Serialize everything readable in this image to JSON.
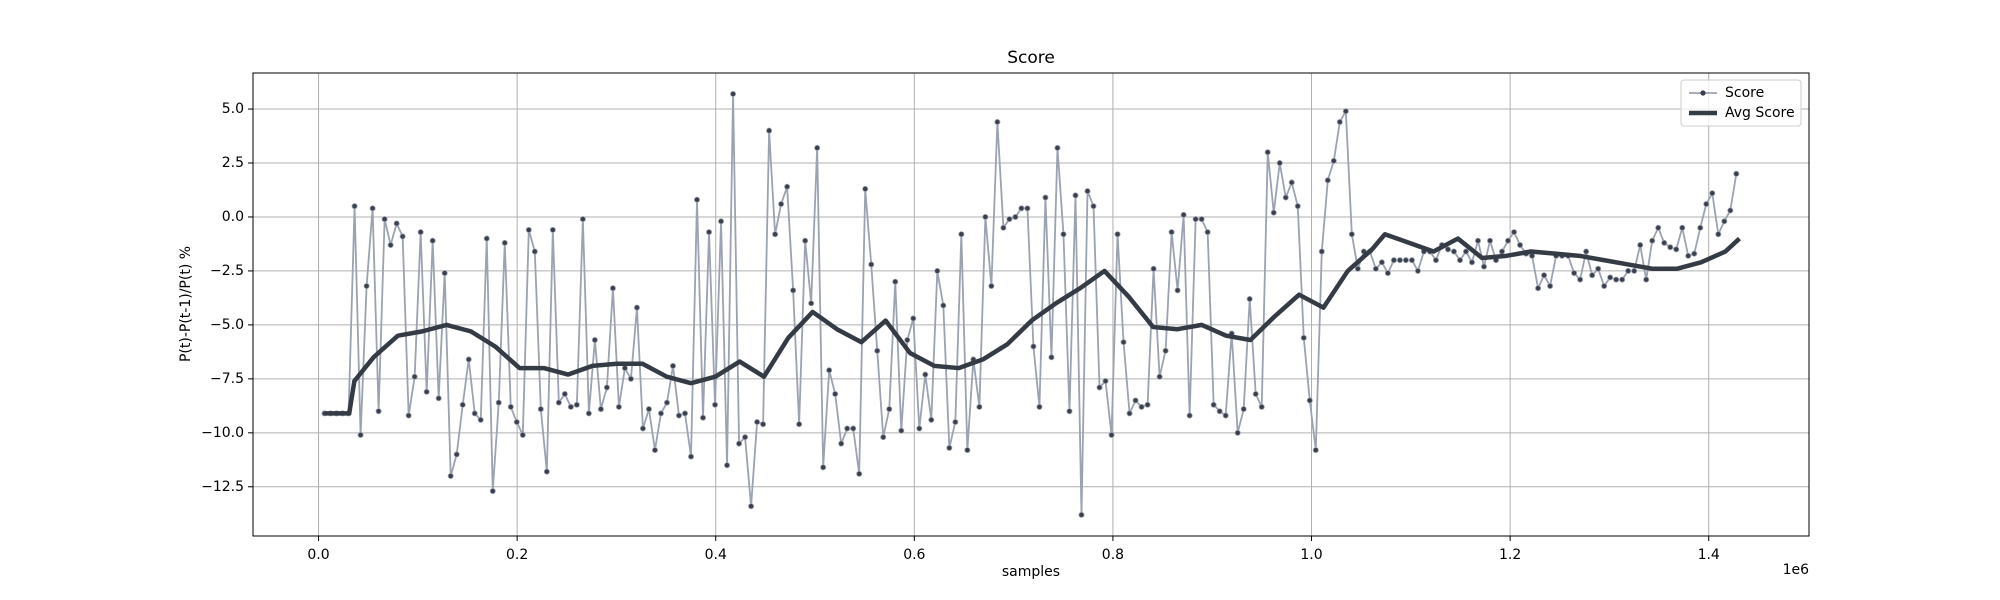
{
  "chart_data": {
    "type": "line",
    "title": "Score",
    "x_label": "samples",
    "y_label": "P(t)-P(t-1)/P(t) %",
    "x_offset_label": "1e6",
    "xlim": [
      -66000,
      1501000
    ],
    "ylim": [
      -14.78,
      6.67
    ],
    "xticks": [
      {
        "value": 0,
        "label": "0.0"
      },
      {
        "value": 200000,
        "label": "0.2"
      },
      {
        "value": 400000,
        "label": "0.4"
      },
      {
        "value": 600000,
        "label": "0.6"
      },
      {
        "value": 800000,
        "label": "0.8"
      },
      {
        "value": 1000000,
        "label": "1.0"
      },
      {
        "value": 1200000,
        "label": "1.2"
      },
      {
        "value": 1400000,
        "label": "1.4"
      }
    ],
    "yticks": [
      {
        "value": -12.5,
        "label": "−12.5"
      },
      {
        "value": -10,
        "label": "−10.0"
      },
      {
        "value": -7.5,
        "label": "−7.5"
      },
      {
        "value": -5,
        "label": "−5.0"
      },
      {
        "value": -2.5,
        "label": "−2.5"
      },
      {
        "value": 0,
        "label": "0.0"
      },
      {
        "value": 2.5,
        "label": "2.5"
      },
      {
        "value": 5,
        "label": "5.0"
      }
    ],
    "grid": true,
    "legend": "upper right",
    "x": [
      6050,
      12100,
      18150,
      24200,
      30250,
      36300,
      42350,
      48400,
      54450,
      60500,
      66550,
      72600,
      78650,
      84700,
      90750,
      96800,
      102850,
      108900,
      114950,
      121000,
      127050,
      133100,
      139150,
      145200,
      151250,
      157300,
      163350,
      169400,
      175450,
      181500,
      187550,
      193600,
      199650,
      205700,
      211750,
      217800,
      223850,
      229900,
      235950,
      242000,
      248050,
      254100,
      260150,
      266200,
      272250,
      278300,
      284350,
      290400,
      296450,
      302500,
      308550,
      314600,
      320650,
      326700,
      332750,
      338800,
      344850,
      350900,
      356950,
      363000,
      369050,
      375100,
      381150,
      387200,
      393250,
      399300,
      405350,
      411400,
      417450,
      423500,
      429550,
      435600,
      441650,
      447700,
      453750,
      459800,
      465850,
      471900,
      477950,
      484000,
      490050,
      496100,
      502150,
      508200,
      514250,
      520300,
      526350,
      532400,
      538450,
      544500,
      550550,
      556600,
      562650,
      568700,
      574750,
      580800,
      586850,
      592900,
      598950,
      605000,
      611050,
      617100,
      623150,
      629200,
      635250,
      641300,
      647350,
      653400,
      659450,
      665500,
      671550,
      677600,
      683650,
      689700,
      695750,
      701800,
      707850,
      713900,
      719950,
      726000,
      732050,
      738100,
      744150,
      750200,
      756250,
      762300,
      768350,
      774400,
      780450,
      786500,
      792550,
      798600,
      804650,
      810700,
      816750,
      822800,
      828850,
      834900,
      840950,
      847000,
      853050,
      859100,
      865150,
      871200,
      877250,
      883300,
      889350,
      895400,
      901450,
      907500,
      913550,
      919600,
      925650,
      931700,
      937750,
      943800,
      949850,
      955900,
      961950,
      968000,
      974050,
      980100,
      986150,
      992200,
      998250,
      1004300,
      1010350,
      1016400,
      1022450,
      1028500,
      1034550,
      1040600,
      1046650,
      1052700,
      1058750,
      1064800,
      1070850,
      1076900,
      1082950,
      1089000,
      1095050,
      1101100,
      1107150,
      1113200,
      1119250,
      1125300,
      1131350,
      1137400,
      1143450,
      1149500,
      1155550,
      1161600,
      1167650,
      1173700,
      1179750,
      1185800,
      1191850,
      1197900,
      1203950,
      1210000,
      1216050,
      1222100,
      1228150,
      1234200,
      1240250,
      1246300,
      1252350,
      1258400,
      1264450,
      1270500,
      1276550,
      1282600,
      1288650,
      1294700,
      1300750,
      1306800,
      1312850,
      1318900,
      1324950,
      1331000,
      1337050,
      1343100,
      1349150,
      1355200,
      1361250,
      1367300,
      1373350,
      1379400,
      1385450,
      1391500,
      1397550,
      1403600,
      1409650,
      1415700,
      1421750,
      1427800
    ],
    "series": [
      {
        "name": "Score",
        "color": "#9ba2b0",
        "marker_color": "#3a3f4b",
        "values": [
          -9.1,
          -9.1,
          -9.1,
          -9.1,
          -9.1,
          0.5,
          -10.1,
          -3.2,
          0.4,
          -9.0,
          -0.1,
          -1.3,
          -0.3,
          -0.9,
          -9.2,
          -7.4,
          -0.7,
          -8.1,
          -1.1,
          -8.4,
          -2.6,
          -12.0,
          -11.0,
          -8.7,
          -6.6,
          -9.1,
          -9.4,
          -1.0,
          -12.7,
          -8.6,
          -1.2,
          -8.8,
          -9.5,
          -10.1,
          -0.6,
          -1.6,
          -8.9,
          -11.8,
          -0.6,
          -8.6,
          -8.2,
          -8.8,
          -8.7,
          -0.1,
          -9.1,
          -5.7,
          -8.9,
          -7.9,
          -3.3,
          -8.8,
          -7.0,
          -7.5,
          -4.2,
          -9.8,
          -8.9,
          -10.8,
          -9.1,
          -8.6,
          -6.9,
          -9.2,
          -9.1,
          -11.1,
          0.8,
          -9.3,
          -0.7,
          -8.7,
          -0.2,
          -11.5,
          5.7,
          -10.5,
          -10.2,
          -13.4,
          -9.5,
          -9.6,
          4.0,
          -0.8,
          0.6,
          1.4,
          -3.4,
          -9.6,
          -1.1,
          -4.0,
          3.2,
          -11.6,
          -7.1,
          -8.2,
          -10.5,
          -9.8,
          -9.8,
          -11.9,
          1.3,
          -2.2,
          -6.2,
          -10.2,
          -8.9,
          -3.0,
          -9.9,
          -5.7,
          -4.7,
          -9.8,
          -7.3,
          -9.4,
          -2.5,
          -4.1,
          -10.7,
          -9.5,
          -0.8,
          -10.8,
          -6.6,
          -8.8,
          0.0,
          -3.2,
          4.4,
          -0.5,
          -0.1,
          0.0,
          0.4,
          0.4,
          -6.0,
          -8.8,
          0.9,
          -6.5,
          3.2,
          -0.8,
          -9.0,
          1.0,
          -13.8,
          1.2,
          0.5,
          -7.9,
          -7.6,
          -10.1,
          -0.8,
          -5.8,
          -9.1,
          -8.5,
          -8.8,
          -8.7,
          -2.4,
          -7.4,
          -6.2,
          -0.7,
          -3.4,
          0.1,
          -9.2,
          -0.1,
          -0.1,
          -0.7,
          -8.7,
          -9.0,
          -9.2,
          -5.4,
          -10.0,
          -8.9,
          -3.8,
          -8.2,
          -8.8,
          3.0,
          0.2,
          2.5,
          0.9,
          1.6,
          0.5,
          -5.6,
          -8.5,
          -10.8,
          -1.6,
          1.7,
          2.6,
          4.4,
          4.9,
          -0.8,
          -2.4,
          -1.6,
          -1.6,
          -2.4,
          -2.1,
          -2.6,
          -2.0,
          -2.0,
          -2.0,
          -2.0,
          -2.5,
          -1.6,
          -1.6,
          -2.0,
          -1.3,
          -1.5,
          -1.6,
          -2.0,
          -1.6,
          -2.1,
          -1.1,
          -2.3,
          -1.1,
          -2.0,
          -1.6,
          -1.1,
          -0.7,
          -1.3,
          -1.7,
          -1.8,
          -3.3,
          -2.7,
          -3.2,
          -1.8,
          -1.8,
          -1.8,
          -2.6,
          -2.9,
          -1.6,
          -2.7,
          -2.4,
          -3.2,
          -2.8,
          -2.9,
          -2.9,
          -2.5,
          -2.5,
          -1.3,
          -2.9,
          -1.1,
          -0.5,
          -1.2,
          -1.4,
          -1.5,
          -0.5,
          -1.8,
          -1.7,
          -0.5,
          0.6,
          1.1,
          -0.8,
          -0.2,
          0.3,
          2.0
        ]
      },
      {
        "name": "Avg Score",
        "color": "#353b45",
        "x": [
          6400,
          30900,
          36100,
          55400,
          79900,
          104400,
          128900,
          153400,
          177900,
          202400,
          226900,
          251400,
          275900,
          300400,
          326200,
          350700,
          375100,
          399600,
          424100,
          448600,
          473100,
          497600,
          522100,
          546600,
          571100,
          595600,
          620100,
          644600,
          669100,
          693600,
          718100,
          742600,
          767000,
          791500,
          816000,
          840500,
          865000,
          889500,
          914000,
          938500,
          963000,
          987500,
          1012000,
          1036500,
          1061000,
          1073900,
          1098400,
          1122900,
          1147400,
          1171800,
          1196300,
          1220800,
          1245300,
          1269800,
          1294300,
          1318800,
          1343300,
          1367800,
          1392300,
          1416800,
          1431000
        ],
        "values": [
          -9.1,
          -9.1,
          -7.6,
          -6.5,
          -5.5,
          -5.3,
          -5.0,
          -5.3,
          -6.0,
          -7.0,
          -7.0,
          -7.3,
          -6.9,
          -6.8,
          -6.8,
          -7.4,
          -7.7,
          -7.4,
          -6.7,
          -7.4,
          -5.6,
          -4.4,
          -5.2,
          -5.8,
          -4.8,
          -6.3,
          -6.9,
          -7.0,
          -6.6,
          -5.9,
          -4.8,
          -4.0,
          -3.3,
          -2.5,
          -3.7,
          -5.1,
          -5.2,
          -5.0,
          -5.5,
          -5.7,
          -4.6,
          -3.6,
          -4.2,
          -2.5,
          -1.5,
          -0.8,
          -1.2,
          -1.6,
          -1.0,
          -1.9,
          -1.8,
          -1.6,
          -1.7,
          -1.8,
          -2.0,
          -2.2,
          -2.4,
          -2.4,
          -2.1,
          -1.6,
          -1.0
        ]
      }
    ]
  }
}
